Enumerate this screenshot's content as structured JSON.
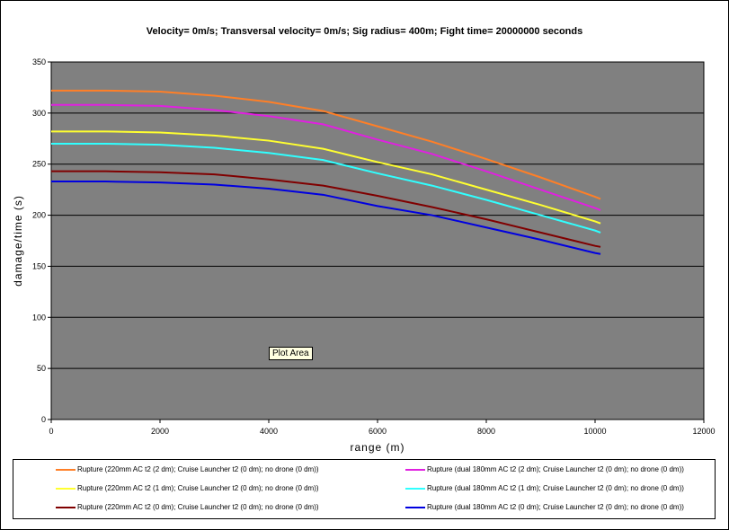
{
  "chart_data": {
    "type": "line",
    "title": "Velocity= 0m/s; Transversal velocity= 0m/s; Sig radius= 400m; Fight time= 20000000 seconds",
    "xlabel": "range (m)",
    "ylabel": "damage/time (s)",
    "xlim": [
      0,
      12000
    ],
    "ylim": [
      0,
      350
    ],
    "xticks": [
      0,
      2000,
      4000,
      6000,
      8000,
      10000,
      12000
    ],
    "yticks": [
      0,
      50,
      100,
      150,
      200,
      250,
      300,
      350
    ],
    "grid": "horizontal",
    "plot_bg": "#808080",
    "legend_placement": "bottom",
    "x": [
      0,
      1000,
      2000,
      3000,
      4000,
      5000,
      6000,
      7000,
      8000,
      9000,
      10000,
      10100
    ],
    "series": [
      {
        "name": "Rupture (220mm AC t2 (2 dm); Cruise Launcher t2 (0 dm); no drone (0 dm))",
        "color": "#ff7f27",
        "values": [
          322,
          322,
          321,
          317,
          311,
          302,
          287,
          272,
          255,
          237,
          218,
          216
        ]
      },
      {
        "name": "Rupture (dual 180mm AC t2 (2 dm); Cruise Launcher t2 (0 dm); no drone (0 dm))",
        "color": "#e020e0",
        "values": [
          308,
          308,
          307,
          303,
          297,
          289,
          274,
          260,
          243,
          225,
          207,
          205
        ]
      },
      {
        "name": "Rupture (220mm AC t2 (1 dm); Cruise Launcher t2 (0 dm); no drone (0 dm))",
        "color": "#ffff30",
        "values": [
          282,
          282,
          281,
          278,
          273,
          265,
          252,
          240,
          225,
          210,
          194,
          192
        ]
      },
      {
        "name": "Rupture (dual 180mm AC t2 (1 dm); Cruise Launcher t2 (0 dm); no drone (0 dm))",
        "color": "#30ffff",
        "values": [
          270,
          270,
          269,
          266,
          261,
          254,
          241,
          229,
          215,
          200,
          185,
          183
        ]
      },
      {
        "name": "Rupture (220mm AC t2 (0 dm); Cruise Launcher t2 (0 dm); no drone (0 dm))",
        "color": "#800000",
        "values": [
          243,
          243,
          242,
          240,
          235,
          229,
          219,
          208,
          196,
          183,
          170,
          169
        ]
      },
      {
        "name": "Rupture (dual 180mm AC t2 (0 dm); Cruise Launcher t2 (0 dm); no drone (0 dm))",
        "color": "#0000e0",
        "values": [
          233,
          233,
          232,
          230,
          226,
          220,
          209,
          200,
          188,
          176,
          163,
          162
        ]
      }
    ]
  },
  "tooltip": "Plot Area"
}
